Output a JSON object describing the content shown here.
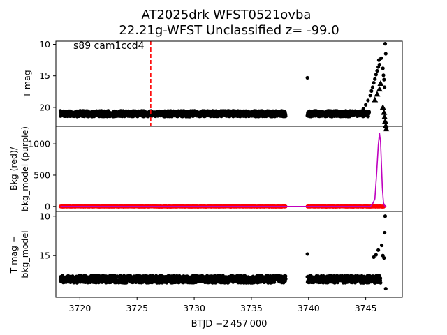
{
  "chart_data": {
    "type": "scatter",
    "title": "AT2025drk  WFST0521ovba\n22.21g-WFST Unclassified z= -99.0",
    "xlabel": "BTJD −2 457 000",
    "xlim": [
      3717.9,
      3748.2
    ],
    "x_ticks": [
      3720,
      3725,
      3730,
      3735,
      3740,
      3745
    ],
    "x_tick_labels": [
      "3720",
      "3725",
      "3730",
      "3735",
      "3740",
      "3745"
    ],
    "grid": false,
    "panels": [
      {
        "id": "tmag",
        "ylabel": "T mag",
        "ylim": [
          23.0,
          9.5
        ],
        "inverted": true,
        "y_ticks": [
          10,
          15,
          20
        ],
        "y_tick_labels": [
          "10",
          "15",
          "20"
        ],
        "annotation": "s89 cam1ccd4",
        "marker_line_x": 3726.2,
        "marker_line_color": "#ff0000",
        "segments": [
          {
            "x0": 3718.3,
            "x1": 3738.0,
            "center": 21.0,
            "spread": 0.45
          },
          {
            "x0": 3739.9,
            "x1": 3745.3,
            "center": 21.0,
            "spread": 0.45
          }
        ],
        "points": [
          [
            3739.9,
            15.3
          ],
          [
            3744.5,
            20.6
          ],
          [
            3744.8,
            20.2
          ],
          [
            3745.0,
            19.6
          ],
          [
            3745.2,
            18.9
          ],
          [
            3745.4,
            18.1
          ],
          [
            3745.5,
            17.4
          ],
          [
            3745.6,
            16.8
          ],
          [
            3745.7,
            16.1
          ],
          [
            3745.8,
            15.5
          ],
          [
            3745.9,
            14.8
          ],
          [
            3746.0,
            14.2
          ],
          [
            3746.1,
            13.6
          ],
          [
            3746.15,
            12.5
          ],
          [
            3746.2,
            13.2
          ],
          [
            3746.35,
            12.2
          ],
          [
            3746.5,
            13.8
          ],
          [
            3746.55,
            14.9
          ],
          [
            3746.6,
            15.6
          ],
          [
            3746.65,
            16.8
          ],
          [
            3746.7,
            9.9
          ],
          [
            3746.75,
            11.5
          ]
        ],
        "upper_limits": [
          [
            3745.8,
            18.8
          ],
          [
            3746.0,
            17.9
          ],
          [
            3746.2,
            17.1
          ],
          [
            3746.3,
            16.2
          ],
          [
            3746.5,
            20.0
          ],
          [
            3746.6,
            20.8
          ],
          [
            3746.65,
            21.5
          ],
          [
            3746.7,
            22.2
          ],
          [
            3746.75,
            22.9
          ],
          [
            3746.8,
            23.4
          ]
        ]
      },
      {
        "id": "bkg",
        "ylabel": "Bkg (red)/\nbkg_model (purple)",
        "ylim": [
          -80,
          1280
        ],
        "y_ticks": [
          0,
          500,
          1000
        ],
        "y_tick_labels": [
          "0",
          "500",
          "1000"
        ],
        "series": [
          {
            "role": "bkg",
            "color": "#ff0000",
            "x_ranges": [
              [
                3718.3,
                3738.0
              ],
              [
                3739.9,
                3746.6
              ]
            ],
            "level": 0,
            "spread": 4
          },
          {
            "role": "bkg_model",
            "color": "#bf00bf",
            "x": [
              3718.3,
              3738.0,
              3739.9,
              3745.4,
              3745.6,
              3745.8,
              3745.95,
              3746.1,
              3746.2,
              3746.3,
              3746.45,
              3746.55,
              3746.65,
              3746.8
            ],
            "y": [
              0,
              0,
              0,
              0,
              40,
              120,
              520,
              980,
              1170,
              1020,
              300,
              60,
              10,
              0
            ]
          }
        ]
      },
      {
        "id": "diff",
        "ylabel": "T mag −\nbkg_model",
        "ylim": [
          20.3,
          9.4
        ],
        "inverted": true,
        "y_ticks": [
          10,
          15
        ],
        "y_tick_labels": [
          "10",
          "15"
        ],
        "segments": [
          {
            "x0": 3718.3,
            "x1": 3738.0,
            "center": 18.0,
            "spread": 0.45
          },
          {
            "x0": 3739.9,
            "x1": 3746.3,
            "center": 18.0,
            "spread": 0.45
          }
        ],
        "points": [
          [
            3739.9,
            14.8
          ],
          [
            3745.7,
            15.2
          ],
          [
            3745.9,
            14.9
          ],
          [
            3746.1,
            14.3
          ],
          [
            3746.4,
            13.7
          ],
          [
            3746.5,
            15.0
          ],
          [
            3746.6,
            15.3
          ],
          [
            3746.65,
            12.1
          ],
          [
            3746.7,
            10.0
          ],
          [
            3746.75,
            19.2
          ]
        ]
      }
    ]
  }
}
